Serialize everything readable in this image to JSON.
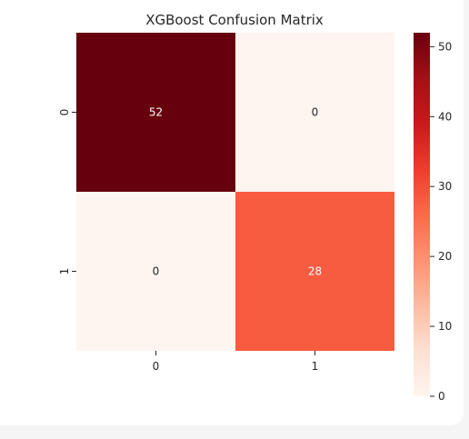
{
  "chart_data": {
    "type": "heatmap",
    "title": "XGBoost Confusion Matrix",
    "xlabel": "",
    "ylabel": "",
    "x_categories": [
      "0",
      "1"
    ],
    "y_categories": [
      "0",
      "1"
    ],
    "values": [
      [
        52,
        0
      ],
      [
        0,
        28
      ]
    ],
    "colormap": "Reds",
    "colorbar": {
      "min": 0,
      "max": 52,
      "ticks": [
        0,
        10,
        20,
        30,
        40,
        50
      ]
    },
    "annotations": true,
    "grid": false,
    "colors": {
      "low": "#fff5f0",
      "high": "#67000d",
      "annotation_dark": "#262626",
      "annotation_light": "#ffffff"
    }
  }
}
